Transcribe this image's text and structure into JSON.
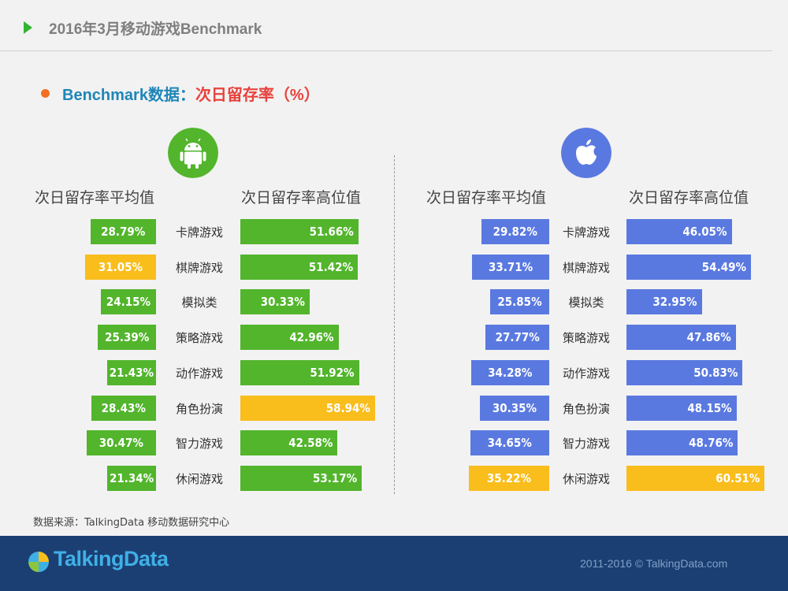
{
  "header": {
    "title": "2016年3月移动游戏Benchmark"
  },
  "subtitle": {
    "part1": "Benchmark数据：",
    "part2": "次日留存率（%）"
  },
  "columns": {
    "avg": "次日留存率平均值",
    "high": "次日留存率高位值"
  },
  "chart_data": [
    {
      "type": "bar",
      "platform_icon": "android-icon",
      "categories": [
        "卡牌游戏",
        "棋牌游戏",
        "模拟类",
        "策略游戏",
        "动作游戏",
        "角色扮演",
        "智力游戏",
        "休闲游戏"
      ],
      "series": [
        {
          "name": "次日留存率平均值",
          "values": [
            28.79,
            31.05,
            24.15,
            25.39,
            21.43,
            28.43,
            30.47,
            21.34
          ],
          "labels": [
            "28.79%",
            "31.05%",
            "24.15%",
            "25.39%",
            "21.43%",
            "28.43%",
            "30.47%",
            "21.34%"
          ],
          "highlight_index": 1
        },
        {
          "name": "次日留存率高位值",
          "values": [
            51.66,
            51.42,
            30.33,
            42.96,
            51.92,
            58.94,
            42.58,
            53.17
          ],
          "labels": [
            "51.66%",
            "51.42%",
            "30.33%",
            "42.96%",
            "51.92%",
            "58.94%",
            "42.58%",
            "53.17%"
          ],
          "highlight_index": 5
        }
      ],
      "colors": {
        "bar": "#52b52c",
        "highlight": "#f9bd1c"
      }
    },
    {
      "type": "bar",
      "platform_icon": "apple-icon",
      "categories": [
        "卡牌游戏",
        "棋牌游戏",
        "模拟类",
        "策略游戏",
        "动作游戏",
        "角色扮演",
        "智力游戏",
        "休闲游戏"
      ],
      "series": [
        {
          "name": "次日留存率平均值",
          "values": [
            29.82,
            33.71,
            25.85,
            27.77,
            34.28,
            30.35,
            34.65,
            35.22
          ],
          "labels": [
            "29.82%",
            "33.71%",
            "25.85%",
            "27.77%",
            "34.28%",
            "30.35%",
            "34.65%",
            "35.22%"
          ],
          "highlight_index": 7
        },
        {
          "name": "次日留存率高位值",
          "values": [
            46.05,
            54.49,
            32.95,
            47.86,
            50.83,
            48.15,
            48.76,
            60.51
          ],
          "labels": [
            "46.05%",
            "54.49%",
            "32.95%",
            "47.86%",
            "50.83%",
            "48.15%",
            "48.76%",
            "60.51%"
          ],
          "highlight_index": 7
        }
      ],
      "colors": {
        "bar": "#5a79e0",
        "highlight": "#f9bd1c"
      }
    }
  ],
  "source": "数据来源：TalkingData 移动数据研究中心",
  "footer": {
    "logo": "TalkingData",
    "copyright": "2011-2016 © TalkingData.com"
  },
  "colors": {
    "footer_bg": "#1c3f73",
    "android_icon_bg": "#52b52c",
    "apple_icon_bg": "#5a79e0"
  }
}
